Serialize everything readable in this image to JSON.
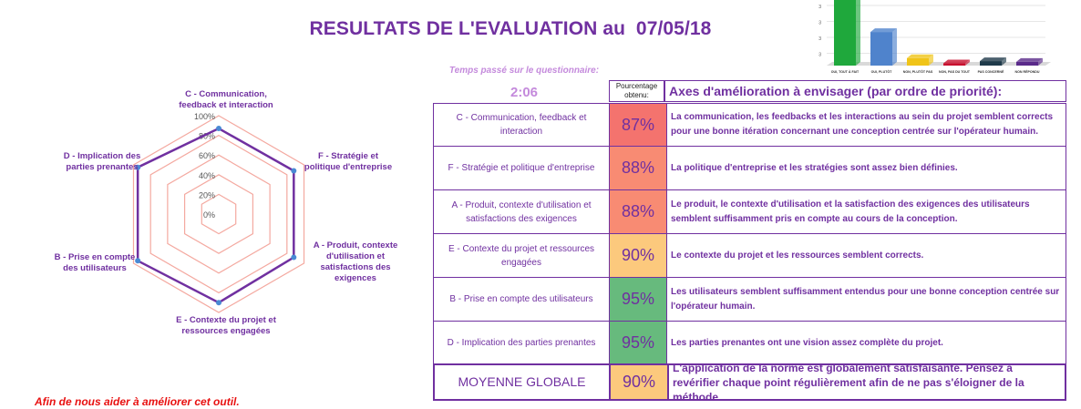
{
  "header": {
    "title": "RESULTATS DE L'EVALUATION au  07/05/18",
    "time_label": "Temps passé sur le questionnaire:",
    "time_value": "2:06",
    "pct_header": "Pourcentage obtenu:",
    "axes_header": "Axes d'amélioration à envisager (par ordre de priorité):"
  },
  "rows": [
    {
      "name": "C - Communication, feedback et interaction",
      "pct": "87%",
      "color": "#f4736e",
      "text": "La communication, les feedbacks et les interactions  au sein du projet semblent corrects pour une bonne itération concernant une conception centrée sur l'opérateur humain."
    },
    {
      "name": "F - Stratégie et politique d'entreprise",
      "pct": "88%",
      "color": "#f88b73",
      "text": "La politique d'entreprise et les stratégies sont assez bien définies."
    },
    {
      "name": "A - Produit, contexte d'utilisation et satisfactions des exigences",
      "pct": "88%",
      "color": "#f88b73",
      "text": "Le produit, le contexte d'utilisation et la satisfaction des exigences des utilisateurs semblent suffisamment pris en compte au cours de la conception."
    },
    {
      "name": "E - Contexte du projet et ressources engagées",
      "pct": "90%",
      "color": "#fcc97d",
      "text": "Le contexte du projet et les ressources semblent corrects."
    },
    {
      "name": "B - Prise en compte des utilisateurs",
      "pct": "95%",
      "color": "#67ba7d",
      "text": "Les utilisateurs semblent suffisamment entendus  pour une bonne conception centrée sur l'opérateur humain."
    },
    {
      "name": "D - Implication des parties prenantes",
      "pct": "95%",
      "color": "#67ba7d",
      "text": "Les parties prenantes ont une vision assez complète du projet."
    }
  ],
  "total": {
    "name": "MOYENNE GLOBALE",
    "pct": "90%",
    "color": "#fcc97d",
    "text": "L'application de la norme est globalement satisfaisante. Pensez à revérifier chaque point régulièrement afin de ne pas s'éloigner de la méthode."
  },
  "footer": "Afin de nous aider à améliorer cet outil.",
  "chart_data": [
    {
      "type": "radar",
      "axes": [
        {
          "label": "C - Communication, feedback et interaction",
          "value": 87
        },
        {
          "label": "F - Stratégie et politique d'entreprise",
          "value": 88
        },
        {
          "label": "A - Produit, contexte d'utilisation et satisfactions des exigences",
          "value": 88
        },
        {
          "label": "E - Contexte du projet et ressources engagées",
          "value": 90
        },
        {
          "label": "B - Prise en compte des utilisateurs",
          "value": 95
        },
        {
          "label": "D - Implication des parties prenantes",
          "value": 95
        }
      ],
      "ticks": [
        "0%",
        "20%",
        "40%",
        "60%",
        "80%",
        "100%"
      ],
      "ylim": [
        0,
        100
      ],
      "grid_color": "#f4a9a0",
      "series_color": "#7030a0",
      "point_color": "#4a8ad4"
    },
    {
      "type": "bar",
      "categories": [
        "OUI, TOUT À FAIT",
        "OUI, PLUTÔT",
        "NON, PLUTÔT PAS",
        "NON, PAS DU TOUT",
        "PAS CONCERNÉ",
        "NON RÉPONDU"
      ],
      "values": [
        95,
        45,
        10,
        3,
        6,
        5
      ],
      "ylim": [
        0,
        100
      ],
      "ticks": [
        "3",
        "3",
        "3",
        "3"
      ],
      "colors": [
        "#1fa83c",
        "#4f83cc",
        "#f0c418",
        "#c8102e",
        "#1f3a4a",
        "#5a2a8a"
      ]
    }
  ]
}
